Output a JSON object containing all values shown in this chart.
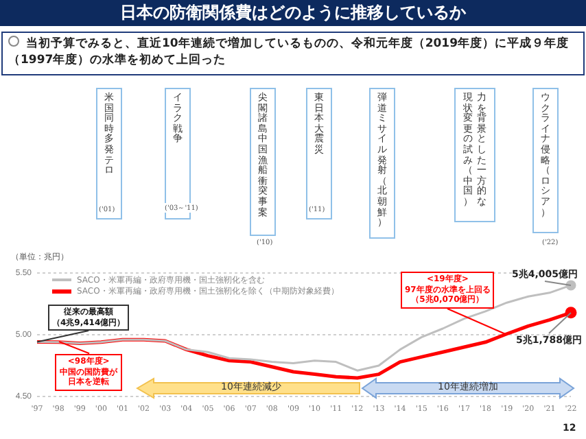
{
  "chart_data": {
    "type": "line",
    "title": "日本の防衛関係費はどのように推移しているか",
    "subtitle": "当初予算でみると、直近10年連続で増加しているものの、令和元年度（2019年度）に平成９年度（1997年度）の水準を初めて上回った",
    "ylabel": "（単位：兆円）",
    "categories": [
      "'97",
      "'98",
      "'99",
      "'00",
      "'01",
      "'02",
      "'03",
      "'04",
      "'05",
      "'06",
      "'07",
      "'08",
      "'09",
      "'10",
      "'11",
      "'12",
      "'13",
      "'14",
      "'15",
      "'16",
      "'17",
      "'18",
      "'19",
      "'20",
      "'21",
      "'22"
    ],
    "series": [
      {
        "name": "SACO・米軍再編・政府専用機・国土強靭化を含む",
        "color": "#bfbfbf",
        "values": [
          4.9414,
          4.94,
          4.93,
          4.94,
          4.96,
          4.96,
          4.95,
          4.88,
          4.86,
          4.81,
          4.8,
          4.78,
          4.77,
          4.79,
          4.78,
          4.71,
          4.75,
          4.88,
          4.98,
          5.05,
          5.13,
          5.19,
          5.26,
          5.31,
          5.34,
          5.4005
        ]
      },
      {
        "name": "SACO・米軍再編・政府専用機・国土強靭化を除く（中期防対象経費）",
        "color": "#ff0000",
        "values": [
          4.9414,
          4.94,
          4.93,
          4.94,
          4.96,
          4.96,
          4.95,
          4.88,
          4.83,
          4.79,
          4.78,
          4.74,
          4.7,
          4.68,
          4.66,
          4.65,
          4.68,
          4.78,
          4.82,
          4.86,
          4.9,
          4.94,
          5.007,
          5.07,
          5.12,
          5.1788
        ]
      }
    ],
    "ylim": [
      4.5,
      5.5
    ],
    "yticks": [
      {
        "value": 4.5,
        "label": "4.50"
      },
      {
        "value": 5,
        "label": "5.00"
      },
      {
        "value": 5.5,
        "label": "5.50"
      }
    ],
    "grid": "y",
    "legend": "top left",
    "annotations": [
      "米国同時多発テロ",
      "イラク戦争",
      "尖閣諸島中国漁船衝突事案",
      "東日本大震災",
      "弾道ミサイル発射（北朝鮮）",
      "力を背景とした一方的な",
      "現状変更の試み（中国）",
      "ウクライナ侵略（ロシア）",
      "('01)",
      "('03～'11)",
      "('10)",
      "('11)",
      "('22)",
      "従来の最高額",
      "（4兆9,414億円）",
      "<98年度>",
      "中国の国防費が日本を逆転",
      "<19年度>",
      "97年度の水準を上回る",
      {
        "text": "（5兆0,070億円）",
        "x": "'19",
        "y": 5.007
      },
      {
        "text": "5兆4,005億円",
        "x": "'22",
        "y": 5.4005
      },
      {
        "text": "5兆1,788億円",
        "x": "'22",
        "y": 5.1788
      },
      "10年連続減少",
      "10年連続増加",
      "12"
    ]
  }
}
